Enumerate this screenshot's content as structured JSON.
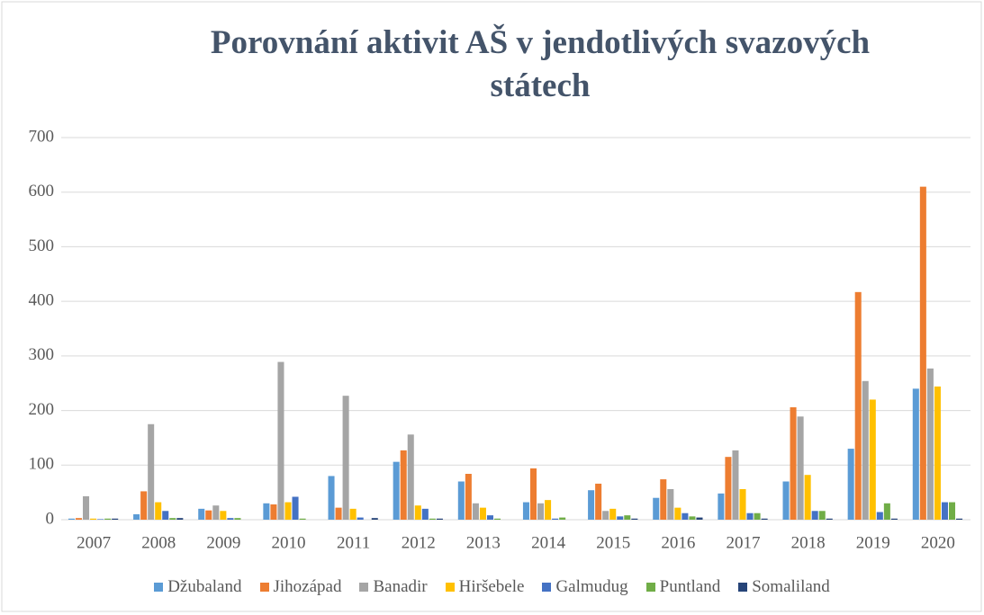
{
  "chart_data": {
    "type": "bar",
    "title": "Porovnání aktivit AŠ v jendotlivých svazových státech",
    "categories": [
      "2007",
      "2008",
      "2009",
      "2010",
      "2011",
      "2012",
      "2013",
      "2014",
      "2015",
      "2016",
      "2017",
      "2018",
      "2019",
      "2020"
    ],
    "series": [
      {
        "name": "Džubaland",
        "color": "#5b9bd5",
        "values": [
          2,
          10,
          20,
          30,
          80,
          106,
          70,
          32,
          54,
          40,
          48,
          70,
          130,
          240
        ]
      },
      {
        "name": "Jihozápad",
        "color": "#ed7d31",
        "values": [
          3,
          52,
          17,
          28,
          22,
          127,
          84,
          94,
          66,
          74,
          115,
          206,
          417,
          610
        ]
      },
      {
        "name": "Banadir",
        "color": "#a5a5a5",
        "values": [
          43,
          175,
          26,
          289,
          227,
          156,
          30,
          30,
          16,
          56,
          127,
          189,
          254,
          277
        ]
      },
      {
        "name": "Hiršebele",
        "color": "#ffc000",
        "values": [
          2,
          32,
          16,
          32,
          20,
          26,
          22,
          36,
          20,
          22,
          56,
          82,
          220,
          244
        ]
      },
      {
        "name": "Galmudug",
        "color": "#4472c4",
        "values": [
          1,
          16,
          3,
          42,
          4,
          20,
          8,
          2,
          6,
          12,
          12,
          16,
          14,
          32
        ]
      },
      {
        "name": "Puntland",
        "color": "#70ad47",
        "values": [
          2,
          3,
          3,
          2,
          0,
          2,
          2,
          4,
          8,
          6,
          12,
          16,
          30,
          32
        ]
      },
      {
        "name": "Somaliland",
        "color": "#264478",
        "values": [
          2,
          3,
          0,
          0,
          3,
          2,
          0,
          0,
          2,
          4,
          2,
          2,
          2,
          2
        ]
      }
    ],
    "ylim": [
      0,
      700
    ],
    "yticks": [
      0,
      100,
      200,
      300,
      400,
      500,
      600,
      700
    ],
    "grid": true,
    "legend": "bottom"
  }
}
